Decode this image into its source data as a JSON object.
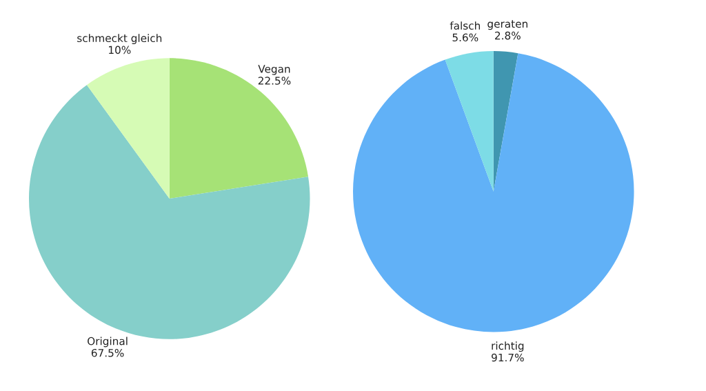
{
  "chart_data": [
    {
      "type": "pie",
      "categories": [
        "Vegan",
        "Original",
        "schmeckt gleich"
      ],
      "values": [
        22.5,
        67.5,
        10
      ],
      "colors": [
        "#a6e276",
        "#85cfca",
        "#d6fbb5"
      ],
      "value_labels": [
        "22.5%",
        "67.5%",
        "10%"
      ]
    },
    {
      "type": "pie",
      "categories": [
        "geraten",
        "richtig",
        "falsch"
      ],
      "values": [
        2.8,
        91.7,
        5.6
      ],
      "colors": [
        "#4096b0",
        "#61b1f7",
        "#7ddce6"
      ],
      "value_labels": [
        "2.8%",
        "91.7%",
        "5.6%"
      ]
    }
  ]
}
